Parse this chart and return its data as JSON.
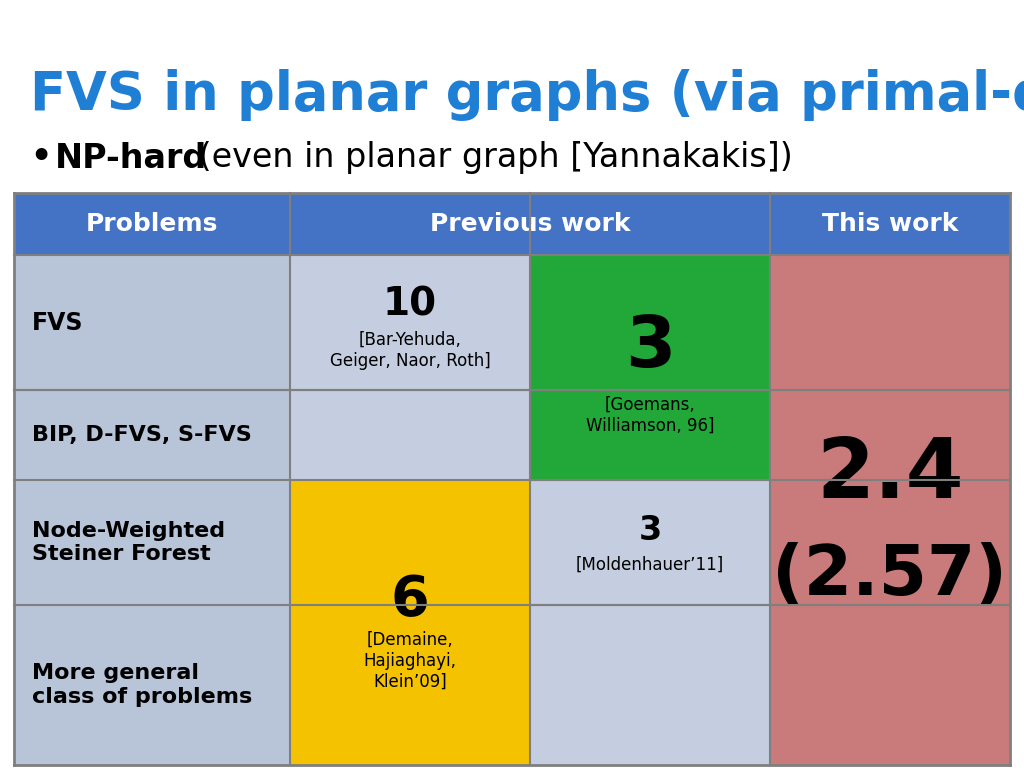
{
  "title": "FVS in planar graphs (via primal-dual)",
  "title_color": "#1F7FD4",
  "subtitle_bold": "NP-hard",
  "subtitle_rest": " (even in planar graph [Yannakakis])",
  "title_fontsize": 38,
  "subtitle_fontsize": 24,
  "background_color": "#ffffff",
  "header_bg": "#4472C4",
  "header_text_color": "#ffffff",
  "cell_colors": {
    "label_bg": "#B8C4D8",
    "prev_light": "#C5CDE0",
    "green": "#22A838",
    "gold": "#F5C200",
    "this_work": "#C97A7A"
  },
  "line_color": "#7F7F7F",
  "line_width": 1.5
}
